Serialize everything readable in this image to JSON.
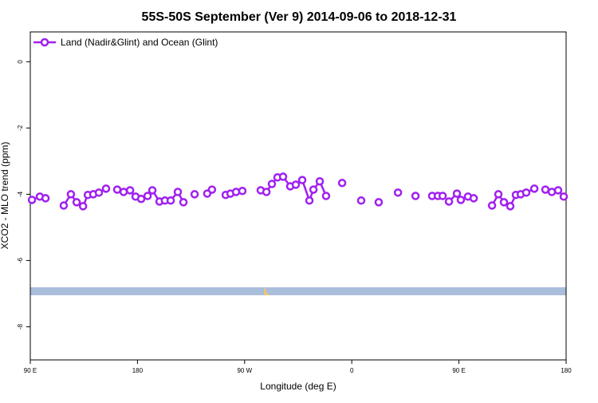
{
  "chart_data": {
    "type": "line",
    "title": "55S-50S September (Ver 9)   2014-09-06 to 2018-12-31",
    "x_label": "Longitude (deg E)",
    "y_label": "XCO2 - MLO trend (ppm)",
    "xlim": [
      90,
      540
    ],
    "xticks": [
      {
        "value": 90,
        "label": "90 E"
      },
      {
        "value": 180,
        "label": "180"
      },
      {
        "value": 270,
        "label": "90 W"
      },
      {
        "value": 360,
        "label": "0"
      },
      {
        "value": 450,
        "label": "90 E"
      },
      {
        "value": 540,
        "label": "180"
      }
    ],
    "ylim": [
      -9,
      0.9
    ],
    "yticks": [
      0,
      -2,
      -4,
      -6,
      -8
    ],
    "legend": "top-left",
    "series": [
      {
        "name": "Land (Nadir&Glint) and Ocean (Glint)",
        "color": "#a020f0",
        "x": [
          91.4,
          98.0,
          102.8,
          null,
          118.1,
          124.1,
          128.9,
          134.3,
          138.3,
          142.9,
          147.6,
          153.6,
          null,
          163.0,
          168.4,
          173.8,
          178.4,
          183.1,
          188.5,
          192.5,
          198.5,
          203.1,
          207.9,
          213.9,
          218.6,
          null,
          228.0,
          null,
          238.6,
          242.6,
          null,
          254.1,
          258.1,
          262.8,
          268.1,
          null,
          283.5,
          288.3,
          292.9,
          297.6,
          302.3,
          308.3,
          313.0,
          318.4,
          324.4,
          327.8,
          333.1,
          338.4,
          null,
          351.9,
          null,
          367.9,
          null,
          382.6,
          null,
          398.8,
          null,
          413.5,
          null,
          427.5,
          432.3,
          436.3,
          null,
          441.6,
          448.3,
          451.6,
          457.6,
          462.4,
          null,
          477.8,
          483.1,
          487.8,
          493.1,
          497.8,
          501.9,
          506.5,
          513.3,
          null,
          522.6,
          528.0,
          533.3,
          538.0
        ],
        "values": [
          -4.17,
          -4.07,
          -4.12,
          null,
          -4.34,
          -4.0,
          -4.24,
          -4.36,
          -4.02,
          -4.0,
          -3.95,
          -3.83,
          null,
          -3.86,
          -3.93,
          -3.88,
          -4.07,
          -4.14,
          -4.05,
          -3.88,
          -4.22,
          -4.19,
          -4.19,
          -3.93,
          -4.24,
          null,
          -4.0,
          null,
          -3.98,
          -3.86,
          null,
          -4.02,
          -3.98,
          -3.93,
          -3.9,
          null,
          -3.88,
          -3.93,
          -3.69,
          -3.49,
          -3.47,
          -3.76,
          -3.71,
          -3.57,
          -4.19,
          -3.86,
          -3.61,
          -4.05,
          null,
          -3.66,
          null,
          -4.19,
          null,
          -4.24,
          null,
          -3.95,
          null,
          -4.05,
          null,
          -4.05,
          -4.05,
          -4.05,
          null,
          -4.22,
          -3.98,
          -4.17,
          -4.07,
          -4.12,
          null,
          -4.34,
          -4.0,
          -4.24,
          -4.36,
          -4.02,
          -4.0,
          -3.95,
          -3.83,
          null,
          -3.86,
          -3.93,
          -3.88,
          -4.07
        ]
      }
    ]
  }
}
